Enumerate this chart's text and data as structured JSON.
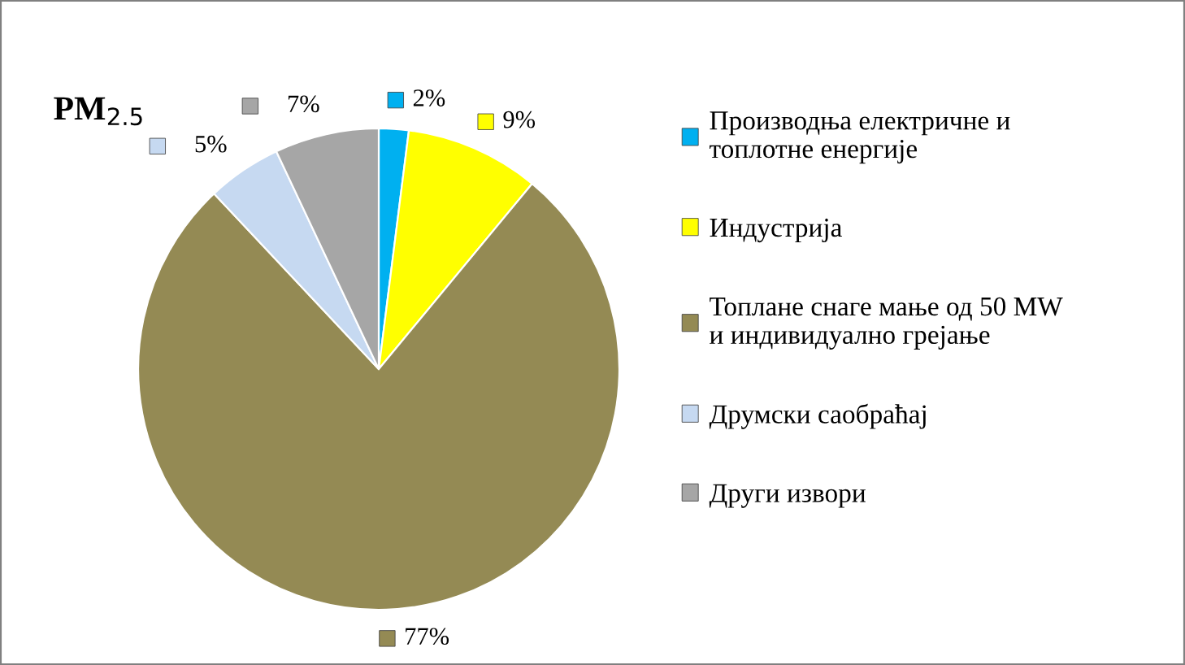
{
  "chart_data": {
    "type": "pie",
    "title": "PM$_{2.5}$",
    "categories": [
      "Производња електричне и топлотне енергије",
      "Индустрија",
      "Топлане снаге мање од 50 MW и индивидуално грејање",
      "Друмски саобраћај",
      "Други извори"
    ],
    "values": [
      2,
      9,
      77,
      5,
      7
    ],
    "value_labels": [
      "2%",
      "9%",
      "77%",
      "5%",
      "7%"
    ],
    "colors": [
      "#00b0f0",
      "#ffff00",
      "#948a54",
      "#c6d9f1",
      "#a6a6a6"
    ],
    "legend": "right"
  }
}
